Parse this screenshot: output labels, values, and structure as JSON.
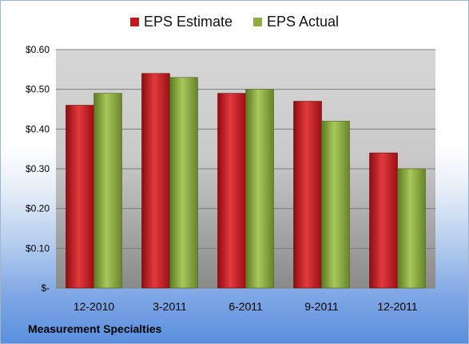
{
  "chart_data": {
    "type": "bar",
    "title": "",
    "xlabel": "",
    "ylabel": "",
    "categories": [
      "12-2010",
      "3-2011",
      "6-2011",
      "9-2011",
      "12-2011"
    ],
    "series": [
      {
        "name": "EPS Estimate",
        "color": "#c8141a",
        "values": [
          0.46,
          0.54,
          0.49,
          0.47,
          0.34
        ]
      },
      {
        "name": "EPS Actual",
        "color": "#8eae3c",
        "values": [
          0.49,
          0.53,
          0.5,
          0.42,
          0.3
        ]
      }
    ],
    "ylim": [
      0,
      0.6
    ],
    "y_ticks": [
      {
        "value": 0.0,
        "label": "$-"
      },
      {
        "value": 0.1,
        "label": "$0.10"
      },
      {
        "value": 0.2,
        "label": "$0.20"
      },
      {
        "value": 0.3,
        "label": "$0.30"
      },
      {
        "value": 0.4,
        "label": "$0.40"
      },
      {
        "value": 0.5,
        "label": "$0.50"
      },
      {
        "value": 0.6,
        "label": "$0.60"
      }
    ],
    "grid": true,
    "legend_position": "top"
  },
  "footer": {
    "company": "Measurement Specialties"
  }
}
